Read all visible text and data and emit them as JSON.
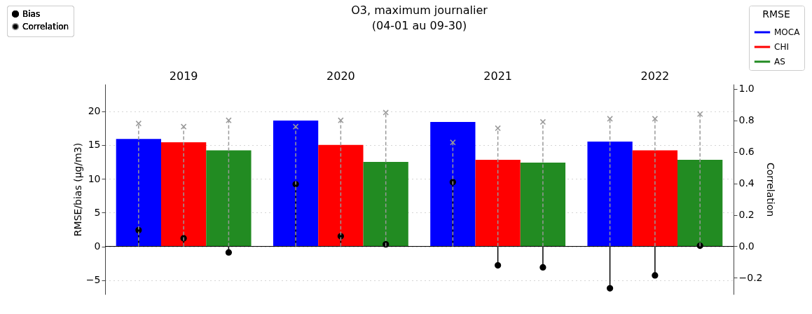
{
  "chart_data": {
    "type": "bar",
    "title": "O3, maximum journalier",
    "subtitle": "(04-01 au 09-30)",
    "ylabel": "RMSE/bias (μg/m3)",
    "y2label": "Correlation",
    "legend_title": "RMSE",
    "legend": "top right",
    "grid": "y",
    "categories": [
      "2019",
      "2020",
      "2021",
      "2022"
    ],
    "ylim": [
      -7.1,
      24
    ],
    "yticks": [
      {
        "value": -5,
        "label": "−5"
      },
      0,
      5,
      10,
      15,
      20
    ],
    "y2lim": [
      -0.305,
      1.03
    ],
    "y2ticks": [
      {
        "value": -0.2,
        "label": "−0.2"
      },
      {
        "value": 0,
        "label": "0.0"
      },
      0.2,
      0.4,
      0.6,
      0.8,
      {
        "value": 1,
        "label": "1.0"
      }
    ],
    "ref_lines": [
      {
        "axis": "y",
        "value": 0,
        "color": "#000000"
      }
    ],
    "series": [
      {
        "name": "MOCA",
        "type": "bar",
        "color": "#0000ff",
        "values": [
          15.9,
          18.6,
          18.4,
          15.5
        ]
      },
      {
        "name": "CHI",
        "type": "bar",
        "color": "#ff0000",
        "values": [
          15.4,
          15.0,
          12.8,
          14.2
        ]
      },
      {
        "name": "AS",
        "type": "bar",
        "color": "#228b22",
        "values": [
          14.2,
          12.5,
          12.4,
          12.8
        ]
      },
      {
        "name": "Bias",
        "type": "lollipop",
        "color": "#000000",
        "marker": "circle",
        "line_style": "solid",
        "values": [
          2.4,
          9.2,
          9.5,
          -6.2
        ]
      },
      {
        "type": "lollipop",
        "color": "#000000",
        "marker": "circle",
        "line_style": "solid",
        "values": [
          1.2,
          1.5,
          -2.8,
          -4.3
        ]
      },
      {
        "type": "lollipop",
        "color": "#000000",
        "marker": "circle",
        "line_style": "solid",
        "values": [
          -0.9,
          0.3,
          -3.1,
          0.1
        ]
      },
      {
        "name": "Correlation",
        "type": "lollipop",
        "axis": "y2",
        "color": "#999999",
        "marker": "cross",
        "line_style": "dashed",
        "values": [
          0.78,
          0.76,
          0.66,
          0.81
        ]
      },
      {
        "type": "lollipop",
        "axis": "y2",
        "color": "#999999",
        "marker": "cross",
        "line_style": "dashed",
        "values": [
          0.76,
          0.8,
          0.75,
          0.81
        ]
      },
      {
        "type": "lollipop",
        "axis": "y2",
        "color": "#999999",
        "marker": "cross",
        "line_style": "dashed",
        "values": [
          0.8,
          0.85,
          0.79,
          0.84
        ]
      }
    ]
  }
}
